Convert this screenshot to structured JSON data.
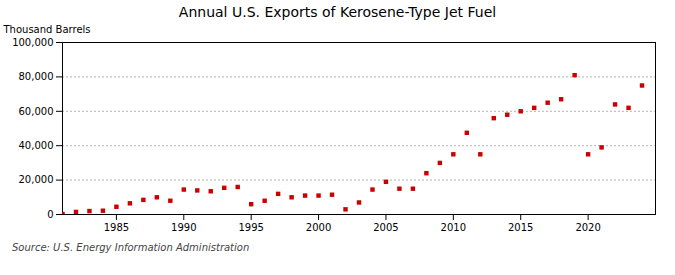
{
  "chart_data": {
    "type": "scatter",
    "title": "Annual U.S. Exports of Kerosene-Type Jet Fuel",
    "ylabel": "Thousand Barrels",
    "source": "Source: U.S. Energy Information Administration",
    "color": "#cc0000",
    "marker": "square",
    "x": [
      1981,
      1982,
      1983,
      1984,
      1985,
      1986,
      1987,
      1988,
      1989,
      1990,
      1991,
      1992,
      1993,
      1994,
      1995,
      1996,
      1997,
      1998,
      1999,
      2000,
      2001,
      2002,
      2003,
      2004,
      2005,
      2006,
      2007,
      2008,
      2009,
      2010,
      2011,
      2012,
      2013,
      2014,
      2015,
      2016,
      2017,
      2018,
      2019,
      2020,
      2021,
      2022,
      2023,
      2024
    ],
    "values": [
      300,
      1500,
      2000,
      2200,
      4500,
      6500,
      8500,
      10000,
      8000,
      14500,
      14000,
      13500,
      15500,
      16000,
      6000,
      8000,
      12000,
      10000,
      11000,
      11000,
      11500,
      3000,
      7000,
      14500,
      19000,
      15000,
      15000,
      24000,
      30000,
      35000,
      47500,
      35000,
      56000,
      58000,
      60000,
      62000,
      65000,
      67000,
      81000,
      35000,
      39000,
      64000,
      62000,
      75000
    ],
    "xlim": [
      1981,
      2025
    ],
    "ylim": [
      0,
      100000
    ],
    "xticks": [
      1985,
      1990,
      1995,
      2000,
      2005,
      2010,
      2015,
      2020
    ],
    "yticks": [
      0,
      {
        "value": 20000,
        "label": "20,000"
      },
      {
        "value": 40000,
        "label": "40,000"
      },
      {
        "value": 60000,
        "label": "60,000"
      },
      {
        "value": 80000,
        "label": "80,000"
      },
      {
        "value": 100000,
        "label": "100,000"
      }
    ],
    "grid": "y"
  }
}
